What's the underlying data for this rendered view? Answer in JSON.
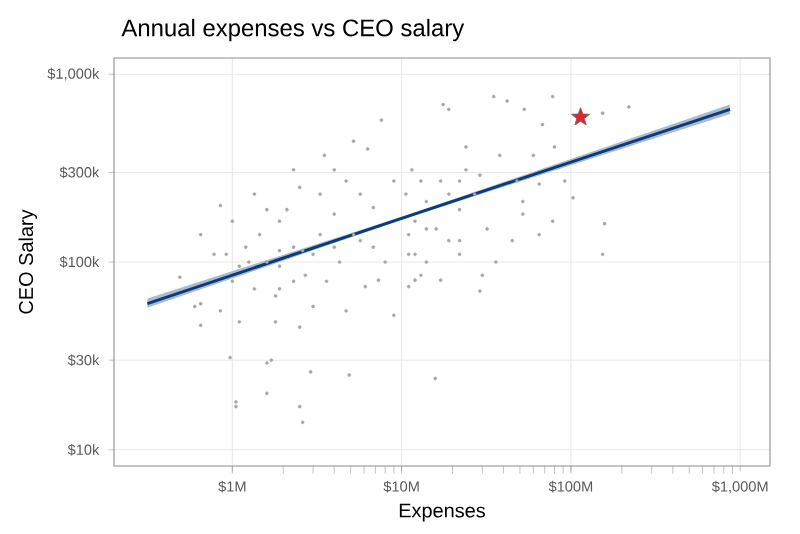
{
  "chart_data": {
    "type": "scatter",
    "title": "Annual expenses vs CEO salary",
    "xlabel": "Expenses",
    "ylabel": "CEO Salary",
    "log": "xy",
    "grid": true,
    "xlim": [
      0.2,
      1500
    ],
    "ylim": [
      8.2,
      1220
    ],
    "xticks": [
      {
        "value": 1,
        "label": "$1M"
      },
      {
        "value": 10,
        "label": "$10M"
      },
      {
        "value": 100,
        "label": "$100M"
      },
      {
        "value": 1000,
        "label": "$1,000M"
      }
    ],
    "yticks": [
      {
        "value": 10,
        "label": "$10k"
      },
      {
        "value": 30,
        "label": "$30k"
      },
      {
        "value": 100,
        "label": "$100k"
      },
      {
        "value": 300,
        "label": "$300k"
      },
      {
        "value": 1000,
        "label": "$1,000k"
      }
    ],
    "series": [
      {
        "marker": "circle",
        "color": "#a6a6a6",
        "x": [
          1.05,
          1.05,
          1.6,
          2.6,
          2.5,
          1.7,
          1.6,
          2.9,
          4.9,
          0.97,
          0.65,
          15.8,
          7.6,
          3.5,
          5.2,
          6.3,
          17.6,
          19,
          35,
          42,
          78,
          53,
          220,
          154,
          68,
          158,
          154,
          103,
          92,
          78,
          52,
          65,
          29,
          36,
          30,
          45,
          22,
          17,
          13,
          24,
          38,
          29,
          60,
          17,
          22,
          14,
          12,
          65,
          80,
          0.49,
          0.6,
          0.65,
          0.85,
          0.78,
          1.0,
          1.2,
          1.35,
          1.6,
          1.8,
          1.9,
          2.3,
          2.5,
          2.7,
          3.0,
          3.3,
          4.0,
          4.3,
          4.7,
          5.7,
          6.1,
          6.8,
          8.0,
          9.0,
          9.0,
          0.92,
          1.1,
          1.35,
          1.45,
          1.9,
          2.1,
          2.3,
          3.0,
          3.6,
          4.0,
          5.2,
          5.7,
          6.8,
          7.3,
          3.3,
          1.8,
          1.1,
          0.65,
          0.85,
          2.5,
          4.7,
          1.6,
          1.0,
          2.3,
          4.0,
          2.6,
          1.9,
          1.25,
          1.9,
          10.6,
          11.5,
          13,
          12,
          16,
          19,
          22,
          24,
          11,
          14,
          19,
          11,
          11,
          14,
          27,
          32,
          22,
          12,
          48,
          52
        ],
        "values": [
          18,
          17,
          20,
          14,
          17,
          30,
          29,
          26,
          25,
          31,
          46,
          24,
          570,
          370,
          440,
          400,
          690,
          650,
          760,
          720,
          760,
          650,
          670,
          620,
          540,
          160,
          110,
          220,
          270,
          165,
          210,
          140,
          70,
          100,
          85,
          130,
          110,
          80,
          85,
          410,
          370,
          290,
          370,
          270,
          270,
          150,
          110,
          260,
          410,
          83,
          58,
          140,
          200,
          110,
          79,
          120,
          230,
          100,
          66,
          165,
          120,
          250,
          85,
          58,
          140,
          180,
          100,
          270,
          130,
          74,
          195,
          100,
          270,
          52,
          110,
          95,
          72,
          140,
          95,
          190,
          79,
          110,
          79,
          120,
          140,
          230,
          120,
          80,
          230,
          48,
          48,
          60,
          55,
          45,
          55,
          190,
          165,
          310,
          310,
          115,
          115,
          100,
          72,
          230,
          310,
          270,
          165,
          150,
          230,
          190,
          310,
          110,
          100,
          130,
          74,
          140,
          210,
          230,
          150,
          130,
          80,
          270,
          180
        ]
      },
      {
        "type": "line",
        "marker": "none",
        "color": "#0b3b78",
        "x": [
          0.315,
          10,
          870
        ],
        "values": [
          60,
          171,
          650
        ],
        "lower": [
          57,
          168,
          615
        ],
        "upper": [
          64,
          174,
          690
        ]
      },
      {
        "type": "scatter",
        "marker": "star",
        "color": "#e3242b",
        "x": [
          114
        ],
        "values": [
          590
        ]
      }
    ]
  }
}
